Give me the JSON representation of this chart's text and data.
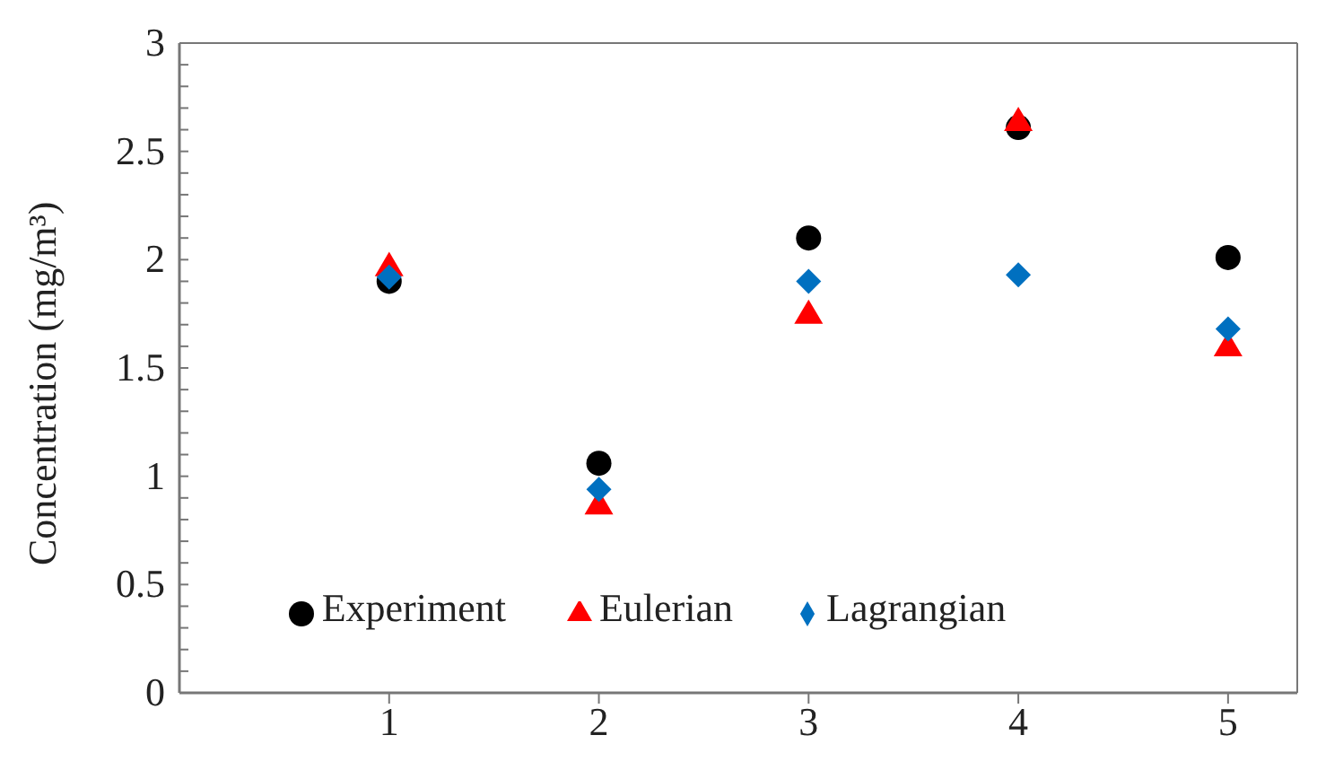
{
  "chart_data": {
    "type": "scatter",
    "ylabel": "Concentration (mg/m³)",
    "x": [
      1,
      2,
      3,
      4,
      5
    ],
    "series": [
      {
        "name": "Experiment",
        "color": "#000000",
        "marker": "circle",
        "values": [
          1.9,
          1.06,
          2.1,
          2.61,
          2.01
        ]
      },
      {
        "name": "Eulerian",
        "color": "#ff0000",
        "marker": "triangle",
        "values": [
          1.97,
          0.87,
          1.75,
          2.64,
          1.6
        ]
      },
      {
        "name": "Lagrangian",
        "color": "#0070c0",
        "marker": "diamond",
        "values": [
          1.92,
          0.94,
          1.9,
          1.93,
          1.68
        ]
      }
    ],
    "xlim": [
      0,
      5.33
    ],
    "xticks": [
      1,
      2,
      3,
      4,
      5
    ],
    "ylim": [
      0,
      3
    ],
    "yticks": [
      0,
      {
        "value": 0.1,
        "label": null
      },
      {
        "value": 0.2,
        "label": null
      },
      {
        "value": 0.3,
        "label": null
      },
      {
        "value": 0.4,
        "label": null
      },
      0.5,
      {
        "value": 0.6,
        "label": null
      },
      {
        "value": 0.7,
        "label": null
      },
      {
        "value": 0.8,
        "label": null
      },
      {
        "value": 0.9,
        "label": null
      },
      1,
      {
        "value": 1.1,
        "label": null
      },
      {
        "value": 1.2,
        "label": null
      },
      {
        "value": 1.3,
        "label": null
      },
      {
        "value": 1.4,
        "label": null
      },
      1.5,
      {
        "value": 1.6,
        "label": null
      },
      {
        "value": 1.7,
        "label": null
      },
      {
        "value": 1.8,
        "label": null
      },
      {
        "value": 1.9,
        "label": null
      },
      2,
      {
        "value": 2.1,
        "label": null
      },
      {
        "value": 2.2,
        "label": null
      },
      {
        "value": 2.3,
        "label": null
      },
      {
        "value": 2.4,
        "label": null
      },
      2.5,
      {
        "value": 2.6,
        "label": null
      },
      {
        "value": 2.7,
        "label": null
      },
      {
        "value": 2.8,
        "label": null
      },
      {
        "value": 2.9,
        "label": null
      },
      3
    ],
    "grid": false,
    "legend": "bottom"
  }
}
